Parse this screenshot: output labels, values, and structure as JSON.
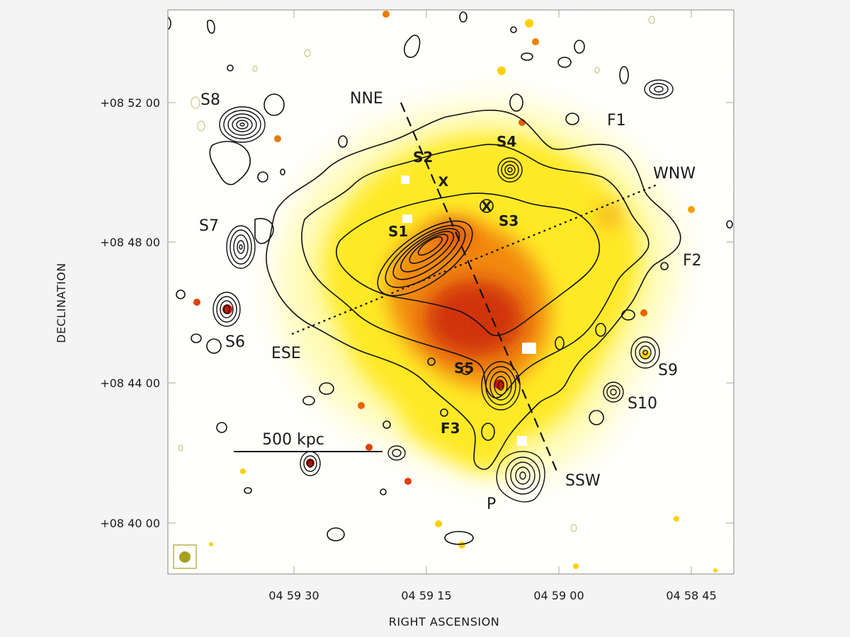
{
  "axes": {
    "y_title": "DECLINATION",
    "x_title": "RIGHT ASCENSION",
    "y_ticks": [
      "+08 52 00",
      "+08 48 00",
      "+08 44 00",
      "+08 40 00"
    ],
    "x_ticks": [
      "04 59 30",
      "04 59 15",
      "04 59 00",
      "04 58 45"
    ]
  },
  "source_labels": {
    "S1": "S1",
    "S2": "S2",
    "S3": "S3",
    "S4": "S4",
    "S5": "S5",
    "S6": "S6",
    "S7": "S7",
    "S8": "S8",
    "S9": "S9",
    "S10": "S10",
    "F1": "F1",
    "F2": "F2",
    "F3": "F3",
    "P": "P"
  },
  "directions": {
    "NNE": "NNE",
    "SSW": "SSW",
    "WNW": "WNW",
    "ESE": "ESE"
  },
  "scale_bar": {
    "label": "500 kpc"
  },
  "x_markers": [
    "X",
    "X"
  ],
  "colors": {
    "xray_core": "#c81400",
    "xray_mid": "#f07800",
    "xray_outer": "#ffe81a",
    "xray_halo": "#fffbb0",
    "contour": "#111111",
    "beam": "#a8a020"
  }
}
